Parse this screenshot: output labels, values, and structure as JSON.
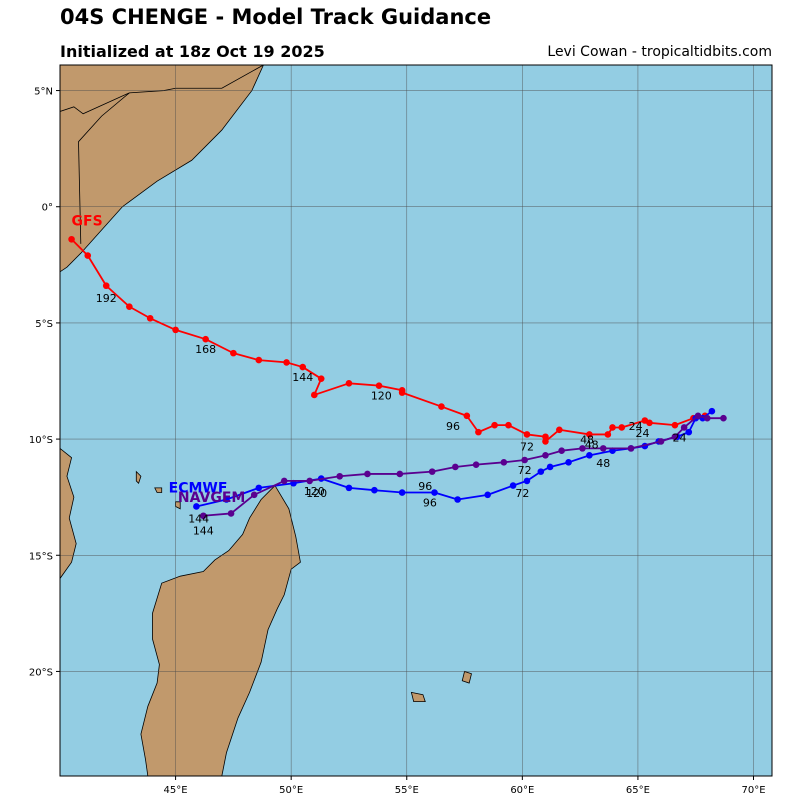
{
  "header": {
    "title": "04S CHENGE - Model Track Guidance",
    "subtitle": "Initialized at 18z Oct 19 2025",
    "credit": "Levi Cowan - tropicaltidbits.com"
  },
  "map": {
    "lon_range": [
      40,
      70.8
    ],
    "lat_range": [
      -24.5,
      6.1
    ],
    "colors": {
      "ocean": "#93cde3",
      "land": "#c1996c",
      "grid": "#4a4a4a"
    },
    "lon_ticks": [
      {
        "value": 45,
        "label": "45°E"
      },
      {
        "value": 50,
        "label": "50°E"
      },
      {
        "value": 55,
        "label": "55°E"
      },
      {
        "value": 60,
        "label": "60°E"
      },
      {
        "value": 65,
        "label": "65°E"
      },
      {
        "value": 70,
        "label": "70°E"
      }
    ],
    "lat_ticks": [
      {
        "value": 5,
        "label": "5°N"
      },
      {
        "value": 0,
        "label": "0°"
      },
      {
        "value": -5,
        "label": "5°S"
      },
      {
        "value": -10,
        "label": "10°S"
      },
      {
        "value": -15,
        "label": "15°S"
      },
      {
        "value": -20,
        "label": "20°S"
      }
    ]
  },
  "tracks": [
    {
      "name": "GFS",
      "color": "#ff0000",
      "name_pos": [
        40.5,
        -0.8
      ],
      "points": [
        [
          67.9,
          -9.0
        ],
        [
          67.4,
          -9.1
        ],
        [
          66.6,
          -9.4
        ],
        [
          65.5,
          -9.3
        ],
        [
          65.3,
          -9.2
        ],
        [
          64.3,
          -9.5
        ],
        [
          63.9,
          -9.5
        ],
        [
          63.7,
          -9.8
        ],
        [
          62.9,
          -9.8
        ],
        [
          61.6,
          -9.6
        ],
        [
          61.0,
          -10.1
        ],
        [
          61.0,
          -9.9
        ],
        [
          60.2,
          -9.8
        ],
        [
          59.4,
          -9.4
        ],
        [
          58.8,
          -9.4
        ],
        [
          58.1,
          -9.7
        ],
        [
          57.6,
          -9.0
        ],
        [
          56.5,
          -8.6
        ],
        [
          54.8,
          -8.0
        ],
        [
          54.8,
          -7.9
        ],
        [
          53.8,
          -7.7
        ],
        [
          52.5,
          -7.6
        ],
        [
          51.0,
          -8.1
        ],
        [
          51.3,
          -7.4
        ],
        [
          50.5,
          -6.9
        ],
        [
          49.8,
          -6.7
        ],
        [
          48.6,
          -6.6
        ],
        [
          47.5,
          -6.3
        ],
        [
          46.3,
          -5.7
        ],
        [
          45.0,
          -5.3
        ],
        [
          43.9,
          -4.8
        ],
        [
          43.0,
          -4.3
        ],
        [
          42.0,
          -3.4
        ],
        [
          41.2,
          -2.1
        ],
        [
          40.5,
          -1.4
        ]
      ],
      "hour_labels": [
        {
          "text": "24",
          "lon": 65.2,
          "lat": -9.9
        },
        {
          "text": "48",
          "lon": 63.0,
          "lat": -10.4
        },
        {
          "text": "72",
          "lon": 60.2,
          "lat": -10.5
        },
        {
          "text": "96",
          "lon": 57.0,
          "lat": -9.6
        },
        {
          "text": "120",
          "lon": 53.9,
          "lat": -8.3
        },
        {
          "text": "144",
          "lon": 50.5,
          "lat": -7.5
        },
        {
          "text": "168",
          "lon": 46.3,
          "lat": -6.3
        },
        {
          "text": "192",
          "lon": 42.0,
          "lat": -4.1
        }
      ]
    },
    {
      "name": "ECMWF",
      "color": "#0000ff",
      "name_pos": [
        44.7,
        -12.3
      ],
      "points": [
        [
          68.2,
          -8.8
        ],
        [
          67.8,
          -9.1
        ],
        [
          67.5,
          -9.1
        ],
        [
          67.2,
          -9.7
        ],
        [
          66.7,
          -9.9
        ],
        [
          65.9,
          -10.1
        ],
        [
          65.3,
          -10.3
        ],
        [
          64.7,
          -10.4
        ],
        [
          63.9,
          -10.5
        ],
        [
          62.9,
          -10.7
        ],
        [
          62.0,
          -11.0
        ],
        [
          61.2,
          -11.2
        ],
        [
          60.8,
          -11.4
        ],
        [
          60.2,
          -11.8
        ],
        [
          59.6,
          -12.0
        ],
        [
          58.5,
          -12.4
        ],
        [
          57.2,
          -12.6
        ],
        [
          56.2,
          -12.3
        ],
        [
          54.8,
          -12.3
        ],
        [
          53.6,
          -12.2
        ],
        [
          52.5,
          -12.1
        ],
        [
          51.3,
          -11.7
        ],
        [
          50.1,
          -11.9
        ],
        [
          48.6,
          -12.1
        ],
        [
          47.2,
          -12.6
        ],
        [
          45.9,
          -12.9
        ]
      ],
      "hour_labels": [
        {
          "text": "24",
          "lon": 66.8,
          "lat": -10.1
        },
        {
          "text": "48",
          "lon": 63.5,
          "lat": -11.2
        },
        {
          "text": "72",
          "lon": 60.0,
          "lat": -12.5
        },
        {
          "text": "96",
          "lon": 56.0,
          "lat": -12.9
        },
        {
          "text": "120",
          "lon": 51.0,
          "lat": -12.4
        },
        {
          "text": "144",
          "lon": 46.0,
          "lat": -13.6
        }
      ]
    },
    {
      "name": "NAVGEM",
      "color": "#5a0090",
      "name_pos": [
        45.1,
        -12.7
      ],
      "points": [
        [
          68.7,
          -9.1
        ],
        [
          68.0,
          -9.1
        ],
        [
          67.6,
          -9.0
        ],
        [
          67.0,
          -9.5
        ],
        [
          66.6,
          -9.9
        ],
        [
          66.0,
          -10.1
        ],
        [
          64.7,
          -10.4
        ],
        [
          63.5,
          -10.4
        ],
        [
          62.6,
          -10.4
        ],
        [
          61.7,
          -10.5
        ],
        [
          61.0,
          -10.7
        ],
        [
          60.1,
          -10.9
        ],
        [
          59.2,
          -11.0
        ],
        [
          58.0,
          -11.1
        ],
        [
          57.1,
          -11.2
        ],
        [
          56.1,
          -11.4
        ],
        [
          54.7,
          -11.5
        ],
        [
          53.3,
          -11.5
        ],
        [
          52.1,
          -11.6
        ],
        [
          50.8,
          -11.8
        ],
        [
          49.7,
          -11.8
        ],
        [
          48.4,
          -12.4
        ],
        [
          47.4,
          -13.2
        ],
        [
          46.2,
          -13.3
        ]
      ],
      "hour_labels": [
        {
          "text": "24",
          "lon": 64.9,
          "lat": -9.6
        },
        {
          "text": "48",
          "lon": 62.8,
          "lat": -10.2
        },
        {
          "text": "72",
          "lon": 60.1,
          "lat": -11.5
        },
        {
          "text": "96",
          "lon": 55.8,
          "lat": -12.2
        },
        {
          "text": "120",
          "lon": 51.1,
          "lat": -12.5
        },
        {
          "text": "144",
          "lon": 46.2,
          "lat": -14.1
        }
      ]
    }
  ],
  "land": [
    {
      "name": "africa",
      "points": [
        [
          40,
          6.1
        ],
        [
          48.8,
          6.1
        ],
        [
          48.3,
          5.0
        ],
        [
          47.0,
          3.3
        ],
        [
          45.7,
          2.0
        ],
        [
          44.2,
          1.1
        ],
        [
          42.7,
          0.0
        ],
        [
          41.8,
          -1.0
        ],
        [
          40.9,
          -2.0
        ],
        [
          40.3,
          -2.6
        ],
        [
          40.0,
          -2.8
        ]
      ]
    },
    {
      "name": "africa-south",
      "points": [
        [
          40,
          -10.4
        ],
        [
          40.5,
          -10.8
        ],
        [
          40.3,
          -11.6
        ],
        [
          40.6,
          -12.5
        ],
        [
          40.4,
          -13.4
        ],
        [
          40.7,
          -14.5
        ],
        [
          40.5,
          -15.3
        ],
        [
          40.0,
          -16.0
        ]
      ]
    },
    {
      "name": "madagascar",
      "points": [
        [
          49.3,
          -12.0
        ],
        [
          49.9,
          -13.0
        ],
        [
          50.2,
          -14.2
        ],
        [
          50.4,
          -15.3
        ],
        [
          50.0,
          -15.6
        ],
        [
          49.7,
          -16.7
        ],
        [
          49.4,
          -17.3
        ],
        [
          49.0,
          -18.2
        ],
        [
          48.7,
          -19.6
        ],
        [
          48.2,
          -20.9
        ],
        [
          47.7,
          -22.0
        ],
        [
          47.2,
          -23.5
        ],
        [
          47.0,
          -24.5
        ],
        [
          43.8,
          -24.5
        ],
        [
          43.7,
          -23.8
        ],
        [
          43.5,
          -22.7
        ],
        [
          43.8,
          -21.5
        ],
        [
          44.2,
          -20.5
        ],
        [
          44.3,
          -19.7
        ],
        [
          44.0,
          -18.6
        ],
        [
          44.0,
          -17.5
        ],
        [
          44.4,
          -16.2
        ],
        [
          45.2,
          -15.9
        ],
        [
          46.2,
          -15.7
        ],
        [
          46.7,
          -15.2
        ],
        [
          47.3,
          -14.8
        ],
        [
          47.9,
          -14.1
        ],
        [
          48.2,
          -13.4
        ],
        [
          48.7,
          -12.6
        ]
      ]
    },
    {
      "name": "comoros-1",
      "points": [
        [
          43.3,
          -11.4
        ],
        [
          43.5,
          -11.6
        ],
        [
          43.4,
          -11.9
        ],
        [
          43.3,
          -11.8
        ]
      ]
    },
    {
      "name": "comoros-2",
      "points": [
        [
          44.1,
          -12.1
        ],
        [
          44.4,
          -12.1
        ],
        [
          44.4,
          -12.3
        ],
        [
          44.2,
          -12.3
        ]
      ]
    },
    {
      "name": "mayotte",
      "points": [
        [
          45.0,
          -12.7
        ],
        [
          45.2,
          -12.7
        ],
        [
          45.2,
          -13.0
        ],
        [
          45.0,
          -12.9
        ]
      ]
    },
    {
      "name": "reunion",
      "points": [
        [
          55.2,
          -20.9
        ],
        [
          55.7,
          -21.0
        ],
        [
          55.8,
          -21.3
        ],
        [
          55.3,
          -21.3
        ]
      ]
    },
    {
      "name": "mauritius",
      "points": [
        [
          57.5,
          -20.0
        ],
        [
          57.8,
          -20.1
        ],
        [
          57.7,
          -20.5
        ],
        [
          57.4,
          -20.4
        ]
      ]
    }
  ]
}
